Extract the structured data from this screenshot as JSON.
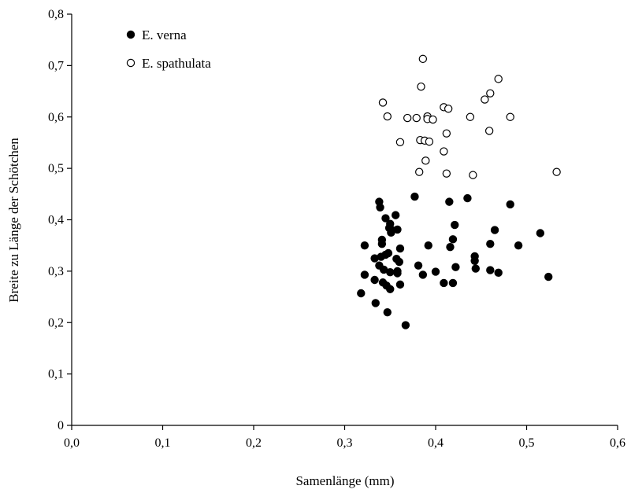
{
  "chart_data": {
    "type": "scatter",
    "xlabel": "Samenlänge (mm)",
    "ylabel": "Breite zu Länge der Schötchen",
    "xlim": [
      0,
      0.6
    ],
    "ylim": [
      0,
      0.8
    ],
    "x_ticks": [
      "0,0",
      "0,1",
      "0,2",
      "0,3",
      "0,4",
      "0,5",
      "0,6"
    ],
    "y_ticks": [
      "0",
      "0,1",
      "0,2",
      "0,3",
      "0,4",
      "0,5",
      "0,6",
      "0,7",
      "0,8"
    ],
    "grid": false,
    "legend_position": "top-left",
    "series": [
      {
        "name": "E. verna",
        "marker": "filled-circle",
        "color": "#000000",
        "points": [
          [
            0.318,
            0.257
          ],
          [
            0.322,
            0.35
          ],
          [
            0.322,
            0.293
          ],
          [
            0.333,
            0.325
          ],
          [
            0.333,
            0.283
          ],
          [
            0.334,
            0.238
          ],
          [
            0.338,
            0.435
          ],
          [
            0.339,
            0.424
          ],
          [
            0.338,
            0.311
          ],
          [
            0.34,
            0.328
          ],
          [
            0.341,
            0.361
          ],
          [
            0.341,
            0.353
          ],
          [
            0.343,
            0.303
          ],
          [
            0.342,
            0.278
          ],
          [
            0.345,
            0.332
          ],
          [
            0.345,
            0.403
          ],
          [
            0.346,
            0.272
          ],
          [
            0.347,
            0.22
          ],
          [
            0.348,
            0.335
          ],
          [
            0.349,
            0.384
          ],
          [
            0.35,
            0.392
          ],
          [
            0.35,
            0.298
          ],
          [
            0.35,
            0.265
          ],
          [
            0.351,
            0.375
          ],
          [
            0.352,
            0.38
          ],
          [
            0.356,
            0.409
          ],
          [
            0.357,
            0.324
          ],
          [
            0.358,
            0.381
          ],
          [
            0.358,
            0.3
          ],
          [
            0.358,
            0.296
          ],
          [
            0.36,
            0.318
          ],
          [
            0.361,
            0.344
          ],
          [
            0.361,
            0.274
          ],
          [
            0.367,
            0.195
          ],
          [
            0.377,
            0.445
          ],
          [
            0.381,
            0.311
          ],
          [
            0.386,
            0.293
          ],
          [
            0.392,
            0.35
          ],
          [
            0.4,
            0.299
          ],
          [
            0.409,
            0.277
          ],
          [
            0.415,
            0.435
          ],
          [
            0.416,
            0.347
          ],
          [
            0.419,
            0.362
          ],
          [
            0.419,
            0.277
          ],
          [
            0.421,
            0.39
          ],
          [
            0.422,
            0.308
          ],
          [
            0.435,
            0.442
          ],
          [
            0.443,
            0.32
          ],
          [
            0.443,
            0.329
          ],
          [
            0.444,
            0.305
          ],
          [
            0.46,
            0.353
          ],
          [
            0.46,
            0.302
          ],
          [
            0.465,
            0.38
          ],
          [
            0.469,
            0.297
          ],
          [
            0.482,
            0.43
          ],
          [
            0.491,
            0.35
          ],
          [
            0.515,
            0.374
          ],
          [
            0.524,
            0.289
          ]
        ]
      },
      {
        "name": "E. spathulata",
        "marker": "open-circle",
        "color": "#000000",
        "points": [
          [
            0.342,
            0.628
          ],
          [
            0.347,
            0.601
          ],
          [
            0.361,
            0.551
          ],
          [
            0.369,
            0.598
          ],
          [
            0.379,
            0.598
          ],
          [
            0.382,
            0.493
          ],
          [
            0.383,
            0.555
          ],
          [
            0.384,
            0.659
          ],
          [
            0.386,
            0.713
          ],
          [
            0.388,
            0.554
          ],
          [
            0.389,
            0.515
          ],
          [
            0.391,
            0.601
          ],
          [
            0.391,
            0.596
          ],
          [
            0.393,
            0.552
          ],
          [
            0.397,
            0.595
          ],
          [
            0.409,
            0.533
          ],
          [
            0.409,
            0.619
          ],
          [
            0.412,
            0.568
          ],
          [
            0.412,
            0.49
          ],
          [
            0.414,
            0.616
          ],
          [
            0.438,
            0.6
          ],
          [
            0.441,
            0.487
          ],
          [
            0.454,
            0.634
          ],
          [
            0.459,
            0.573
          ],
          [
            0.46,
            0.646
          ],
          [
            0.469,
            0.674
          ],
          [
            0.482,
            0.6
          ],
          [
            0.533,
            0.493
          ]
        ]
      }
    ]
  }
}
